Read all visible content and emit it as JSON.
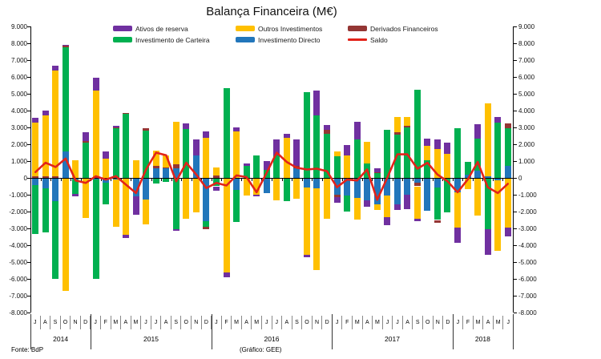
{
  "title": "Balança Financeira (M€)",
  "footer": {
    "left": "Fonte: BdP",
    "right": "(Gráfico: GEE)"
  },
  "colors": {
    "reserva": "#7030A0",
    "carteira": "#00B050",
    "outros": "#FFC000",
    "directo": "#2276BB",
    "derivados": "#943634",
    "saldo": "#E2231A",
    "axis": "#000000"
  },
  "legend": [
    {
      "label": "Ativos de reserva",
      "color": "#7030A0",
      "line": false
    },
    {
      "label": "Outros Investimentos",
      "color": "#FFC000",
      "line": false
    },
    {
      "label": "Derivados Financeiros",
      "color": "#943634",
      "line": false
    },
    {
      "label": "Investimento de Carteira",
      "color": "#00B050",
      "line": false
    },
    {
      "label": "Investimento Directo",
      "color": "#2276BB",
      "line": false
    },
    {
      "label": "Saldo",
      "color": "#E2231A",
      "line": true
    }
  ],
  "chart_data": {
    "type": "bar",
    "stacked": true,
    "title": "Balança Financeira (M€)",
    "ylim": [
      -8000,
      9000
    ],
    "ytick_step": 1000,
    "y_tick_labels": [
      "9.000",
      "8.000",
      "7.000",
      "6.000",
      "5.000",
      "4.000",
      "3.000",
      "2.000",
      "1.000",
      "0",
      "-1.000",
      "-2.000",
      "-3.000",
      "-4.000",
      "-5.000",
      "-6.000",
      "-7.000",
      "-8.000"
    ],
    "grid": false,
    "legend_position": "top",
    "categories": [
      "J",
      "A",
      "S",
      "O",
      "N",
      "D",
      "J",
      "F",
      "M",
      "A",
      "M",
      "J",
      "J",
      "A",
      "S",
      "O",
      "N",
      "D",
      "J",
      "F",
      "M",
      "A",
      "M",
      "J",
      "J",
      "A",
      "S",
      "O",
      "N",
      "D",
      "J",
      "F",
      "M",
      "A",
      "M",
      "J",
      "J",
      "A",
      "S",
      "O",
      "N",
      "D",
      "J",
      "F",
      "M",
      "A",
      "M",
      "J"
    ],
    "year_groups": [
      {
        "label": "2014",
        "span": 6
      },
      {
        "label": "2015",
        "span": 12
      },
      {
        "label": "2016",
        "span": 12
      },
      {
        "label": "2017",
        "span": 12
      },
      {
        "label": "2018",
        "span": 6
      }
    ],
    "series": [
      {
        "name": "Investimento Directo",
        "color": "#2276BB",
        "values": [
          -450,
          -600,
          -1400,
          1550,
          -100,
          -50,
          -100,
          -300,
          -100,
          -50,
          -1100,
          -1300,
          550,
          550,
          550,
          -50,
          1350,
          -2550,
          -50,
          -50,
          -700,
          -50,
          -50,
          -900,
          -50,
          -50,
          550,
          -550,
          -600,
          -50,
          -1000,
          -1050,
          -1200,
          -1350,
          -1550,
          -1050,
          -1550,
          -1000,
          -300,
          -1950,
          -550,
          0,
          -850,
          200,
          450,
          100,
          -150,
          700
        ]
      },
      {
        "name": "Investimento de Carteira",
        "color": "#00B050",
        "values": [
          -2900,
          -2650,
          -4600,
          6200,
          -850,
          2100,
          -5900,
          -1250,
          2950,
          3800,
          0,
          2800,
          -350,
          -250,
          -3050,
          2900,
          0,
          -350,
          -450,
          5350,
          -1900,
          700,
          1350,
          500,
          1350,
          -1350,
          0,
          5100,
          3700,
          2600,
          1300,
          -950,
          2300,
          850,
          300,
          2850,
          2550,
          3000,
          5250,
          1050,
          -1950,
          -2050,
          2950,
          750,
          1900,
          -3050,
          3300,
          2250
        ]
      },
      {
        "name": "Derivados Financeiros",
        "color": "#943634",
        "values": [
          100,
          100,
          100,
          100,
          0,
          100,
          50,
          0,
          50,
          50,
          0,
          150,
          150,
          50,
          250,
          0,
          0,
          -150,
          150,
          0,
          0,
          0,
          0,
          0,
          0,
          0,
          150,
          0,
          0,
          250,
          -150,
          0,
          0,
          0,
          50,
          0,
          150,
          100,
          -200,
          0,
          -150,
          0,
          0,
          0,
          0,
          0,
          0,
          300
        ]
      },
      {
        "name": "Outros Investimentos",
        "color": "#FFC000",
        "values": [
          3200,
          3600,
          6300,
          -6700,
          1050,
          -2350,
          5150,
          1150,
          -2800,
          -3350,
          1050,
          -1450,
          900,
          750,
          2550,
          -2400,
          -2050,
          2400,
          450,
          -5550,
          2750,
          -1000,
          -950,
          0,
          -1300,
          2400,
          -1250,
          -4000,
          -4900,
          -2400,
          250,
          1350,
          -1300,
          1300,
          -350,
          -1300,
          900,
          500,
          -1950,
          850,
          1700,
          1450,
          -2100,
          -650,
          -2250,
          4350,
          -4200,
          -2950
        ]
      },
      {
        "name": "Ativos de reserva",
        "color": "#7030A0",
        "values": [
          250,
          300,
          250,
          50,
          -150,
          500,
          750,
          400,
          100,
          -150,
          -1100,
          0,
          0,
          0,
          -100,
          350,
          950,
          350,
          -250,
          -300,
          250,
          150,
          -100,
          500,
          950,
          200,
          1600,
          -150,
          1500,
          300,
          -350,
          600,
          1050,
          -350,
          200,
          -450,
          -350,
          -850,
          -100,
          450,
          600,
          650,
          -900,
          0,
          850,
          -1500,
          300,
          -550
        ]
      }
    ],
    "line": {
      "name": "Saldo",
      "color": "#E2231A",
      "values": [
        350,
        900,
        650,
        1150,
        -150,
        -300,
        100,
        -100,
        100,
        -400,
        -900,
        500,
        1500,
        1350,
        -200,
        900,
        200,
        -600,
        -300,
        -450,
        150,
        50,
        -850,
        300,
        1500,
        950,
        600,
        500,
        550,
        400,
        -550,
        -100,
        -150,
        500,
        -1300,
        0,
        1400,
        1400,
        550,
        900,
        200,
        -200,
        -850,
        -100,
        950,
        -550,
        -900,
        -350
      ]
    }
  }
}
